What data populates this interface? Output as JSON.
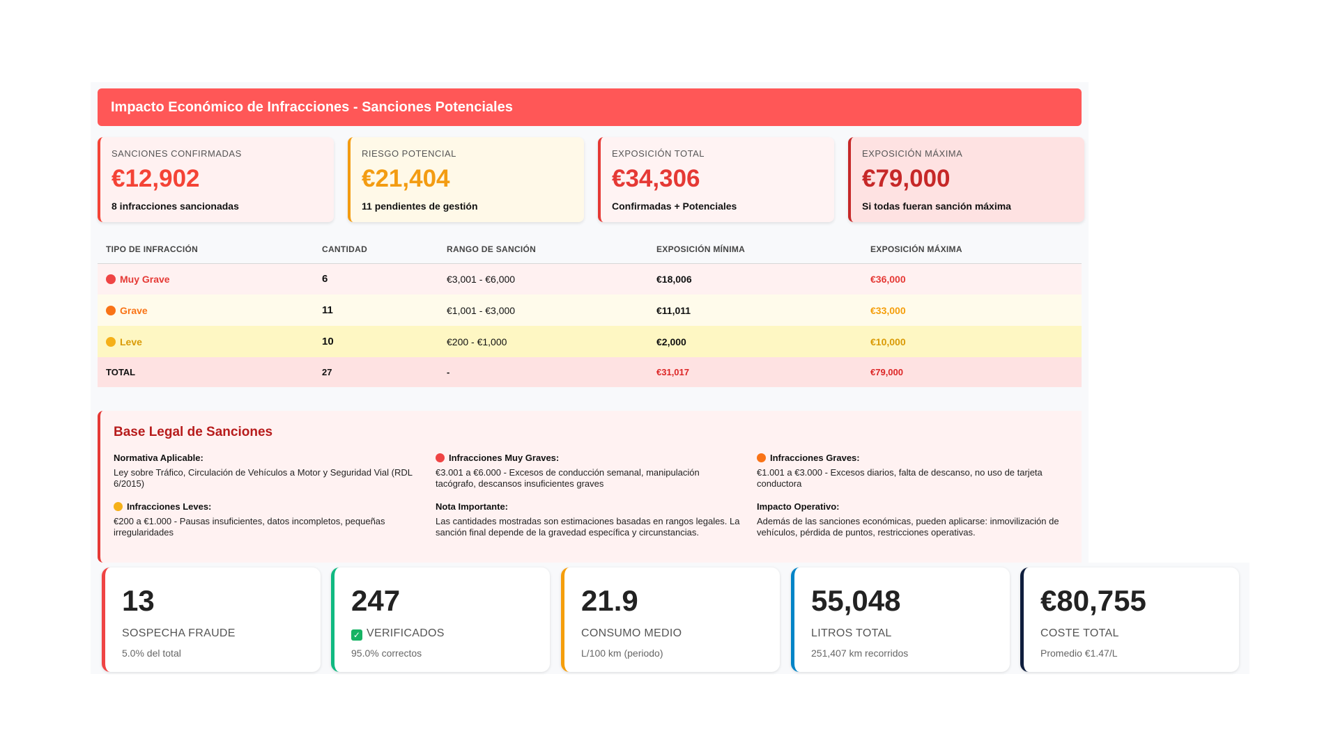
{
  "header": {
    "title": "Impacto Económico de Infracciones - Sanciones Potenciales"
  },
  "summary_cards": [
    {
      "label": "SANCIONES CONFIRMADAS",
      "value": "€12,902",
      "sub": "8 infracciones sancionadas",
      "color": "#f44336",
      "bg": "#fff1f1"
    },
    {
      "label": "RIESGO POTENCIAL",
      "value": "€21,404",
      "sub": "11 pendientes de gestión",
      "color": "#f39c12",
      "bg": "#fff9e8"
    },
    {
      "label": "EXPOSICIÓN TOTAL",
      "value": "€34,306",
      "sub": "Confirmadas + Potenciales",
      "color": "#e53935",
      "bg": "#fff3f3"
    },
    {
      "label": "EXPOSICIÓN MÁXIMA",
      "value": "€79,000",
      "sub": "Si todas fueran sanción máxima",
      "color": "#c62828",
      "bg": "#fee2e2"
    }
  ],
  "table": {
    "headers": [
      "TIPO DE INFRACCIÓN",
      "CANTIDAD",
      "RANGO DE SANCIÓN",
      "EXPOSICIÓN MÍNIMA",
      "EXPOSICIÓN MÁXIMA"
    ],
    "rows": [
      {
        "type": "Muy Grave",
        "count": "6",
        "range": "€3,001 - €6,000",
        "min": "€18,006",
        "max": "€36,000",
        "color": "#e53935",
        "bg": "#fff1f1",
        "dot": "#ef4444"
      },
      {
        "type": "Grave",
        "count": "11",
        "range": "€1,001 - €3,000",
        "min": "€11,011",
        "max": "€33,000",
        "color": "#f97316",
        "bg": "#fffbeb",
        "dot": "#f97316"
      },
      {
        "type": "Leve",
        "count": "10",
        "range": "€200 - €1,000",
        "min": "€2,000",
        "max": "€10,000",
        "color": "#d99a06",
        "bg": "#fef7c3",
        "dot": "#f5b019"
      }
    ],
    "total": {
      "label": "TOTAL",
      "count": "27",
      "range": "-",
      "min": "€31,017",
      "max": "€79,000",
      "color": "#dc2626",
      "bg": "#fee2e2"
    }
  },
  "legal": {
    "title": "Base Legal de Sanciones",
    "normativa": {
      "h": "Normativa Aplicable:",
      "p": "Ley sobre Tráfico, Circulación de Vehículos a Motor y Seguridad Vial (RDL 6/2015)"
    },
    "muy_graves": {
      "h": "Infracciones Muy Graves:",
      "p": "€3.001 a €6.000 - Excesos de conducción semanal, manipulación tacógrafo, descansos insuficientes graves"
    },
    "graves": {
      "h": "Infracciones Graves:",
      "p": "€1.001 a €3.000 - Excesos diarios, falta de descanso, no uso de tarjeta conductora"
    },
    "leves": {
      "h": "Infracciones Leves:",
      "p": "€200 a €1.000 - Pausas insuficientes, datos incompletos, pequeñas irregularidades"
    },
    "nota": {
      "h": "Nota Importante:",
      "p": "Las cantidades mostradas son estimaciones basadas en rangos legales. La sanción final depende de la gravedad específica y circunstancias."
    },
    "impacto": {
      "h": "Impacto Operativo:",
      "p": "Además de las sanciones económicas, pueden aplicarse: inmovilización de vehículos, pérdida de puntos, restricciones operativas."
    }
  },
  "stats": [
    {
      "value": "13",
      "label": "SOSPECHA FRAUDE",
      "sub": "5.0% del total",
      "color": "#ef4444"
    },
    {
      "value": "247",
      "label": "VERIFICADOS",
      "sub": "95.0% correctos",
      "color": "#10b981"
    },
    {
      "value": "21.9",
      "label": "CONSUMO MEDIO",
      "sub": "L/100 km (periodo)",
      "color": "#f59e0b"
    },
    {
      "value": "55,048",
      "label": "LITROS TOTAL",
      "sub": "251,407 km recorridos",
      "color": "#0284c7"
    },
    {
      "value": "€80,755",
      "label": "COSTE TOTAL",
      "sub": "Promedio €1.47/L",
      "color": "#0f1e3d"
    }
  ]
}
